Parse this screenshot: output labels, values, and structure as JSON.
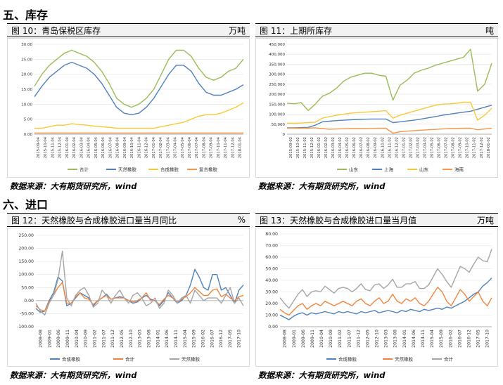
{
  "sections": {
    "inventory_title": "五、库存",
    "import_title": "六、进口"
  },
  "panels": {
    "fig10": {
      "title": "图 10：青岛保税区库存",
      "unit": "万吨"
    },
    "fig11": {
      "title": "图 11：上期所库存",
      "unit": "吨"
    },
    "fig12": {
      "title": "图 12：天然橡胶与合成橡胶进口量当月同比",
      "unit": "%"
    },
    "fig13": {
      "title": "图 13：天然橡胶与合成橡胶进口量当月值",
      "unit": "万吨"
    }
  },
  "source_text": "数据来源：大有期货研究所，wind",
  "chart_data": [
    {
      "id": "fig10",
      "type": "line",
      "ylim": [
        0,
        30
      ],
      "yticks": [
        "0.00",
        "5.00",
        "10.00",
        "15.00",
        "20.00",
        "25.00",
        "30.00"
      ],
      "ytick_values": [
        0,
        5,
        10,
        15,
        20,
        25,
        30
      ],
      "xticks": [
        "2015-09-04",
        "2015-10-04",
        "2015-11-04",
        "2015-12-04",
        "2016-01-04",
        "2016-02-04",
        "2016-03-04",
        "2016-04-04",
        "2016-05-04",
        "2016-06-04",
        "2016-07-04",
        "2016-08-04",
        "2016-09-04",
        "2016-10-04",
        "2016-11-04",
        "2016-12-04",
        "2017-01-04",
        "2017-02-04",
        "2017-03-04",
        "2017-04-04",
        "2017-05-04",
        "2017-06-04",
        "2017-07-04",
        "2017-08-04",
        "2017-09-04",
        "2017-10-04",
        "2017-11-04",
        "2017-12-04",
        "2018-01-04"
      ],
      "series": [
        {
          "name": "合计",
          "color": "#9bbb59",
          "values": [
            16,
            20,
            23,
            25,
            27,
            28,
            27,
            26,
            24,
            21,
            17,
            12,
            10,
            9,
            10,
            12,
            15,
            20,
            25,
            28,
            28,
            26,
            22,
            19,
            18,
            19,
            21,
            22,
            25
          ]
        },
        {
          "name": "天然橡胶",
          "color": "#4f81bd",
          "values": [
            12.5,
            16,
            19,
            21,
            23,
            24,
            23,
            22,
            20,
            17,
            13,
            9,
            7,
            6.5,
            7,
            9,
            12,
            16,
            20,
            23,
            23,
            21,
            17,
            14,
            13,
            13,
            14,
            15,
            16.5
          ]
        },
        {
          "name": "合成橡胶",
          "color": "#f8c938",
          "values": [
            2,
            2,
            2.5,
            3,
            3,
            3.5,
            3.2,
            3,
            2.7,
            2.5,
            2.3,
            2,
            2,
            2,
            2,
            2,
            2,
            2.5,
            3,
            3.5,
            4,
            5,
            6,
            6.5,
            6.5,
            7,
            8,
            9,
            10.5
          ]
        },
        {
          "name": "复合橡胶",
          "color": "#f79646",
          "values": [
            0.4,
            0.4,
            0.4,
            0.4,
            0.4,
            0.4,
            0.4,
            0.4,
            0.4,
            0.4,
            0.4,
            0.4,
            0.4,
            0.4,
            0.4,
            0.4,
            0.4,
            0.4,
            0.4,
            0.4,
            0.4,
            0.4,
            0.4,
            0.4,
            0.4,
            0.4,
            0.4,
            0.4,
            0.4
          ]
        }
      ]
    },
    {
      "id": "fig11",
      "type": "line",
      "ylim": [
        0,
        450000
      ],
      "yticks": [
        "0",
        "50,000",
        "100,000",
        "150,000",
        "200,000",
        "250,000",
        "300,000",
        "350,000",
        "400,000",
        "450,000"
      ],
      "ytick_values": [
        0,
        50000,
        100000,
        150000,
        200000,
        250000,
        300000,
        350000,
        400000,
        450000
      ],
      "xticks": [
        "2015-09-02",
        "2015-10-02",
        "2015-11-02",
        "2015-12-02",
        "2016-01-02",
        "2016-02-02",
        "2016-03-02",
        "2016-04-02",
        "2016-05-02",
        "2016-06-02",
        "2016-07-02",
        "2016-08-02",
        "2016-09-02",
        "2016-10-02",
        "2016-11-02",
        "2016-12-02",
        "2017-01-02",
        "2017-02-02",
        "2017-03-02",
        "2017-04-02",
        "2017-05-02",
        "2017-06-02",
        "2017-07-02",
        "2017-08-02",
        "2017-09-02",
        "2017-10-02",
        "2017-11-02",
        "2017-12-02",
        "2018-01-02"
      ],
      "series": [
        {
          "name": "山东",
          "color": "#9bbb59",
          "values": [
            155000,
            152000,
            158000,
            118000,
            150000,
            190000,
            205000,
            230000,
            265000,
            285000,
            295000,
            305000,
            305000,
            295000,
            290000,
            170000,
            245000,
            270000,
            305000,
            320000,
            330000,
            345000,
            355000,
            365000,
            375000,
            385000,
            425000,
            215000,
            250000,
            355000
          ]
        },
        {
          "name": "上海",
          "color": "#4f81bd",
          "values": [
            32000,
            32000,
            33000,
            34000,
            45000,
            62000,
            65000,
            68000,
            70000,
            72000,
            74000,
            75000,
            76000,
            76000,
            76000,
            58000,
            62000,
            66000,
            70000,
            76000,
            82000,
            88000,
            95000,
            100000,
            105000,
            110000,
            115000,
            125000,
            135000,
            145000
          ]
        },
        {
          "name": "山东",
          "color": "#f8c938",
          "values": [
            55000,
            55000,
            56000,
            58000,
            60000,
            80000,
            88000,
            95000,
            100000,
            105000,
            108000,
            110000,
            112000,
            115000,
            118000,
            80000,
            95000,
            105000,
            115000,
            125000,
            135000,
            145000,
            150000,
            152000,
            155000,
            160000,
            160000,
            70000,
            95000,
            130000
          ]
        },
        {
          "name": "海南",
          "color": "#f79646",
          "values": [
            30000,
            30000,
            30000,
            30000,
            32000,
            28000,
            25000,
            26000,
            27000,
            28000,
            28000,
            28000,
            29000,
            30000,
            30000,
            5000,
            12000,
            15000,
            18000,
            20000,
            22000,
            24000,
            26000,
            28000,
            28000,
            30000,
            30000,
            22000,
            26000,
            30000
          ]
        }
      ]
    },
    {
      "id": "fig12",
      "type": "line",
      "ylim": [
        -100,
        250
      ],
      "yticks": [
        "-100.00",
        "-50.00",
        "0.00",
        "50.00",
        "100.00",
        "150.00",
        "200.00",
        "250.00"
      ],
      "ytick_values": [
        -100,
        -50,
        0,
        50,
        100,
        150,
        200,
        250
      ],
      "xticks": [
        "2008-08",
        "2009-01",
        "2009-06",
        "2009-11",
        "2010-04",
        "2010-09",
        "2011-02",
        "2011-07",
        "2011-12",
        "2012-05",
        "2012-10",
        "2013-03",
        "2013-08",
        "2014-01",
        "2014-06",
        "2014-11",
        "2015-04",
        "2015-09",
        "2016-02",
        "2016-07",
        "2016-12",
        "2017-05",
        "2017-10"
      ],
      "series": [
        {
          "name": "合成橡胶",
          "color": "#4f81bd",
          "values": [
            -30,
            -45,
            -40,
            0,
            30,
            90,
            75,
            -20,
            -10,
            10,
            30,
            20,
            10,
            -20,
            0,
            10,
            25,
            5,
            10,
            15,
            10,
            0,
            -10,
            -5,
            10,
            20,
            5,
            0,
            -20,
            0,
            30,
            10,
            -10,
            0,
            20,
            60,
            120,
            90,
            50,
            40,
            100,
            100,
            40,
            50,
            20,
            -10,
            40,
            60
          ]
        },
        {
          "name": "合计",
          "color": "#f0843c",
          "values": [
            -20,
            -35,
            -40,
            -5,
            20,
            50,
            70,
            -10,
            -10,
            15,
            30,
            10,
            5,
            -15,
            0,
            10,
            20,
            5,
            10,
            10,
            10,
            0,
            -5,
            0,
            10,
            30,
            0,
            0,
            -15,
            5,
            20,
            10,
            -5,
            5,
            15,
            30,
            50,
            35,
            20,
            20,
            40,
            45,
            15,
            25,
            10,
            0,
            15,
            20
          ]
        },
        {
          "name": "天然橡胶",
          "color": "#a5a5a5",
          "values": [
            -10,
            -40,
            -55,
            -10,
            20,
            80,
            190,
            10,
            -20,
            20,
            40,
            50,
            20,
            -25,
            -10,
            40,
            20,
            -10,
            20,
            40,
            10,
            -10,
            20,
            30,
            10,
            -20,
            -10,
            10,
            -30,
            -10,
            40,
            20,
            -10,
            10,
            20,
            -10,
            40,
            20,
            0,
            10,
            10,
            10,
            -10,
            20,
            50,
            -10,
            10,
            -20
          ]
        }
      ]
    },
    {
      "id": "fig13",
      "type": "line",
      "ylim": [
        0,
        80
      ],
      "yticks": [
        "0.00",
        "10.00",
        "20.00",
        "30.00",
        "40.00",
        "50.00",
        "60.00",
        "70.00",
        "80.00"
      ],
      "ytick_values": [
        0,
        10,
        20,
        30,
        40,
        50,
        60,
        70,
        80
      ],
      "xticks": [
        "2008-08",
        "2009-01",
        "2009-06",
        "2009-11",
        "2010-04",
        "2010-09",
        "2011-02",
        "2011-07",
        "2011-12",
        "2012-05",
        "2012-10",
        "2013-03",
        "2013-08",
        "2014-01",
        "2014-06",
        "2014-11",
        "2015-04",
        "2015-09",
        "2016-02",
        "2016-07",
        "2016-12",
        "2017-05",
        "2017-10"
      ],
      "series": [
        {
          "name": "合成橡胶",
          "color": "#4f81bd",
          "values": [
            10,
            8,
            6,
            9,
            11,
            12,
            10,
            12,
            11,
            12,
            13,
            12,
            11,
            13,
            12,
            13,
            12,
            11,
            13,
            12,
            13,
            14,
            12,
            13,
            14,
            13,
            12,
            14,
            13,
            15,
            14,
            13,
            15,
            14,
            15,
            16,
            15,
            17,
            16,
            18,
            20,
            22,
            25,
            28,
            30,
            35,
            38,
            42
          ]
        },
        {
          "name": "天然橡胶",
          "color": "#f0843c",
          "values": [
            15,
            12,
            10,
            14,
            18,
            20,
            15,
            18,
            20,
            18,
            22,
            20,
            18,
            20,
            22,
            20,
            18,
            22,
            24,
            20,
            18,
            22,
            25,
            20,
            22,
            28,
            22,
            20,
            24,
            22,
            25,
            20,
            18,
            22,
            28,
            34,
            30,
            22,
            18,
            25,
            32,
            28,
            22,
            26,
            30,
            22,
            18,
            25
          ]
        },
        {
          "name": "合计",
          "color": "#a5a5a5",
          "values": [
            25,
            20,
            16,
            22,
            28,
            32,
            26,
            30,
            31,
            30,
            35,
            32,
            29,
            33,
            34,
            33,
            30,
            33,
            37,
            32,
            31,
            36,
            37,
            33,
            36,
            41,
            34,
            34,
            37,
            37,
            39,
            33,
            33,
            36,
            43,
            50,
            45,
            39,
            34,
            43,
            52,
            50,
            47,
            54,
            60,
            57,
            56,
            67
          ]
        }
      ]
    }
  ]
}
